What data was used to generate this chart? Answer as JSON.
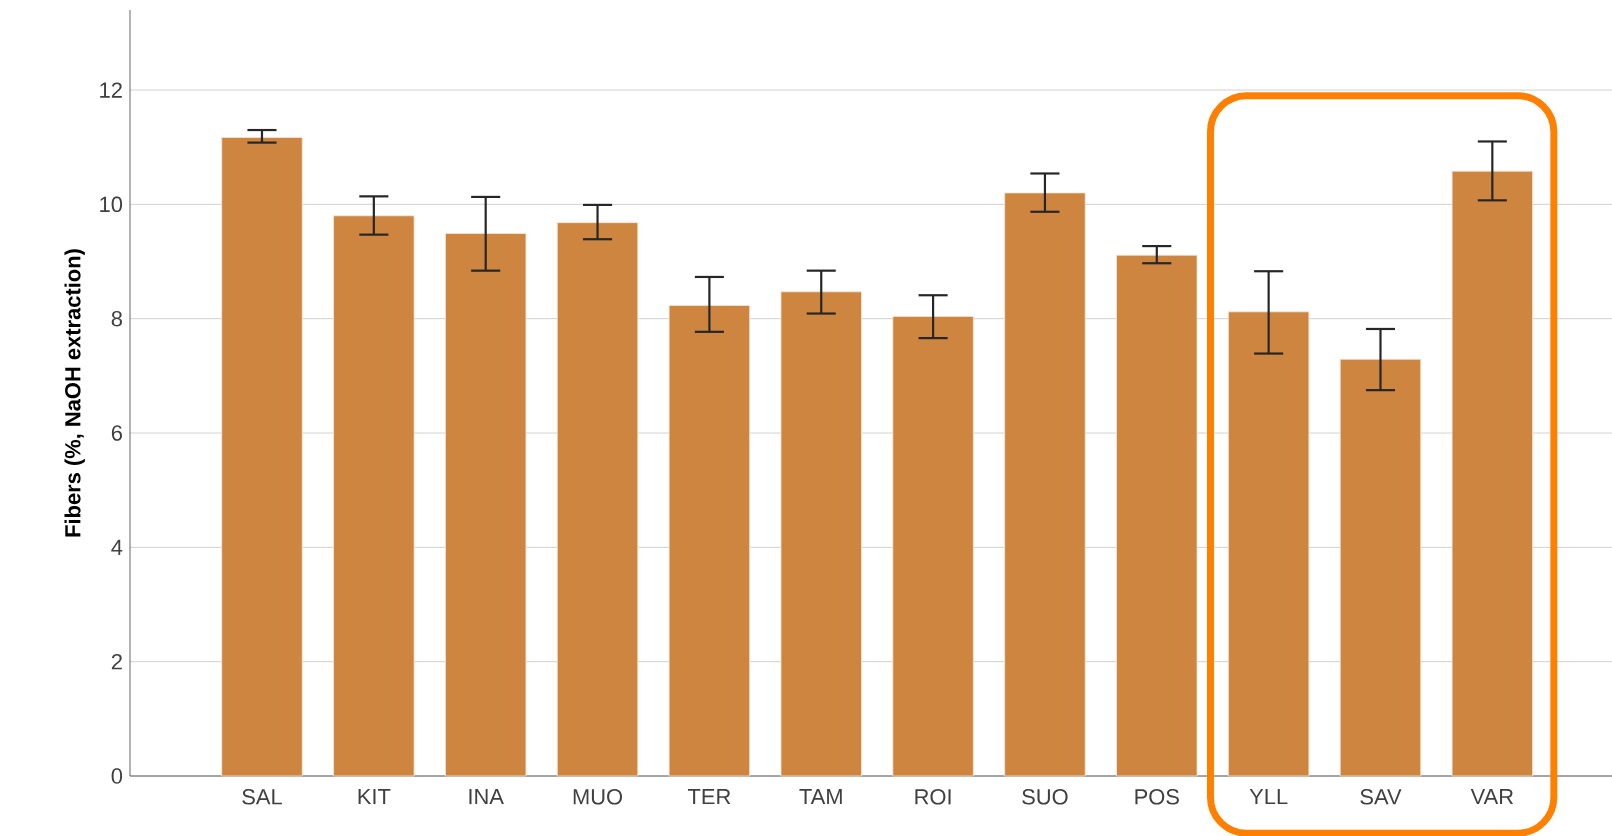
{
  "chart_data": {
    "type": "bar",
    "ylabel": "Fibers (%, NaOH extraction)",
    "categories": [
      "SAL",
      "KIT",
      "INA",
      "MUO",
      "TER",
      "TAM",
      "ROI",
      "SUO",
      "POS",
      "YLL",
      "SAV",
      "VAR"
    ],
    "values": [
      11.17,
      9.8,
      9.49,
      9.68,
      8.23,
      8.47,
      8.04,
      10.2,
      9.11,
      8.12,
      7.29,
      10.58
    ],
    "errors": [
      [
        11.08,
        11.3
      ],
      [
        9.47,
        10.14
      ],
      [
        8.84,
        10.13
      ],
      [
        9.39,
        9.99
      ],
      [
        7.77,
        8.73
      ],
      [
        8.09,
        8.84
      ],
      [
        7.66,
        8.41
      ],
      [
        9.87,
        10.54
      ],
      [
        8.97,
        9.27
      ],
      [
        7.39,
        8.83
      ],
      [
        6.75,
        7.82
      ],
      [
        10.07,
        11.1
      ]
    ],
    "color": "#cd853f",
    "ylim": [
      0,
      13.4
    ],
    "yticks": [
      0,
      2,
      4,
      6,
      8,
      10,
      12
    ],
    "grid": "y"
  }
}
